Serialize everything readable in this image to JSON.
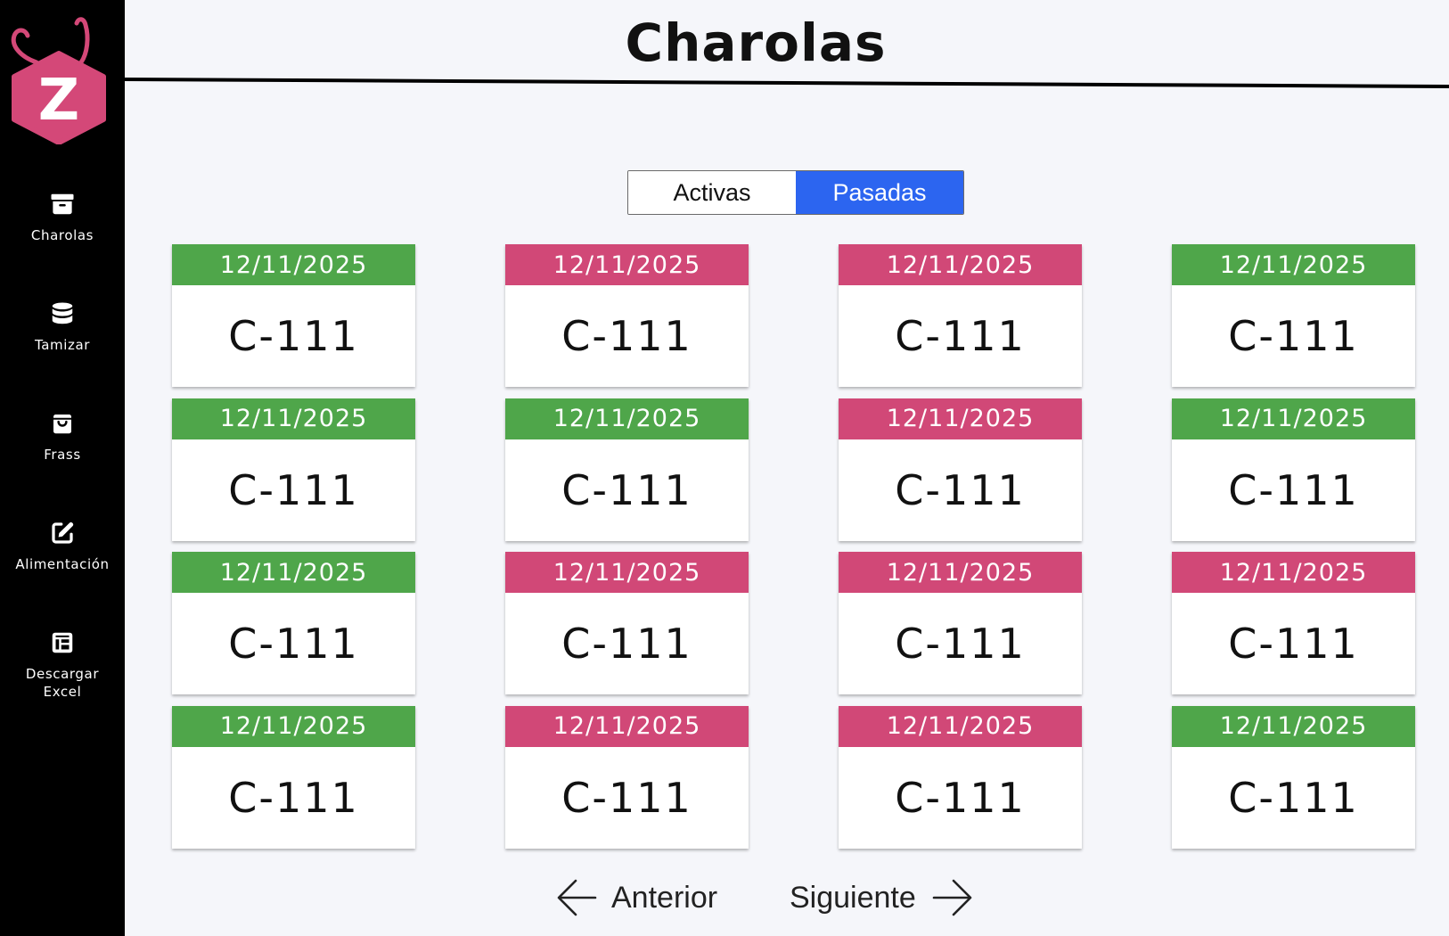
{
  "header": {
    "title": "Charolas"
  },
  "logo": {
    "letter": "Z",
    "color": "#d44878"
  },
  "sidebar": {
    "items": [
      {
        "label": "Charolas",
        "icon": "archive-box-icon"
      },
      {
        "label": "Tamizar",
        "icon": "database-icon"
      },
      {
        "label": "Frass",
        "icon": "shopping-bag-icon"
      },
      {
        "label": "Alimentación",
        "icon": "edit-icon"
      },
      {
        "label": "Descargar Excel",
        "icon": "table-icon"
      }
    ]
  },
  "toggle": {
    "options": [
      "Activas",
      "Pasadas"
    ],
    "selected": "Pasadas"
  },
  "colors": {
    "green": "#4fa64a",
    "pink": "#d14877",
    "accent": "#2c65f0"
  },
  "cards": [
    {
      "date": "12/11/2025",
      "code": "C-111",
      "status": "green"
    },
    {
      "date": "12/11/2025",
      "code": "C-111",
      "status": "pink"
    },
    {
      "date": "12/11/2025",
      "code": "C-111",
      "status": "pink"
    },
    {
      "date": "12/11/2025",
      "code": "C-111",
      "status": "green"
    },
    {
      "date": "12/11/2025",
      "code": "C-111",
      "status": "green"
    },
    {
      "date": "12/11/2025",
      "code": "C-111",
      "status": "green"
    },
    {
      "date": "12/11/2025",
      "code": "C-111",
      "status": "pink"
    },
    {
      "date": "12/11/2025",
      "code": "C-111",
      "status": "green"
    },
    {
      "date": "12/11/2025",
      "code": "C-111",
      "status": "green"
    },
    {
      "date": "12/11/2025",
      "code": "C-111",
      "status": "pink"
    },
    {
      "date": "12/11/2025",
      "code": "C-111",
      "status": "pink"
    },
    {
      "date": "12/11/2025",
      "code": "C-111",
      "status": "pink"
    },
    {
      "date": "12/11/2025",
      "code": "C-111",
      "status": "green"
    },
    {
      "date": "12/11/2025",
      "code": "C-111",
      "status": "pink"
    },
    {
      "date": "12/11/2025",
      "code": "C-111",
      "status": "pink"
    },
    {
      "date": "12/11/2025",
      "code": "C-111",
      "status": "green"
    }
  ],
  "pagination": {
    "prev_label": "Anterior",
    "next_label": "Siguiente"
  }
}
